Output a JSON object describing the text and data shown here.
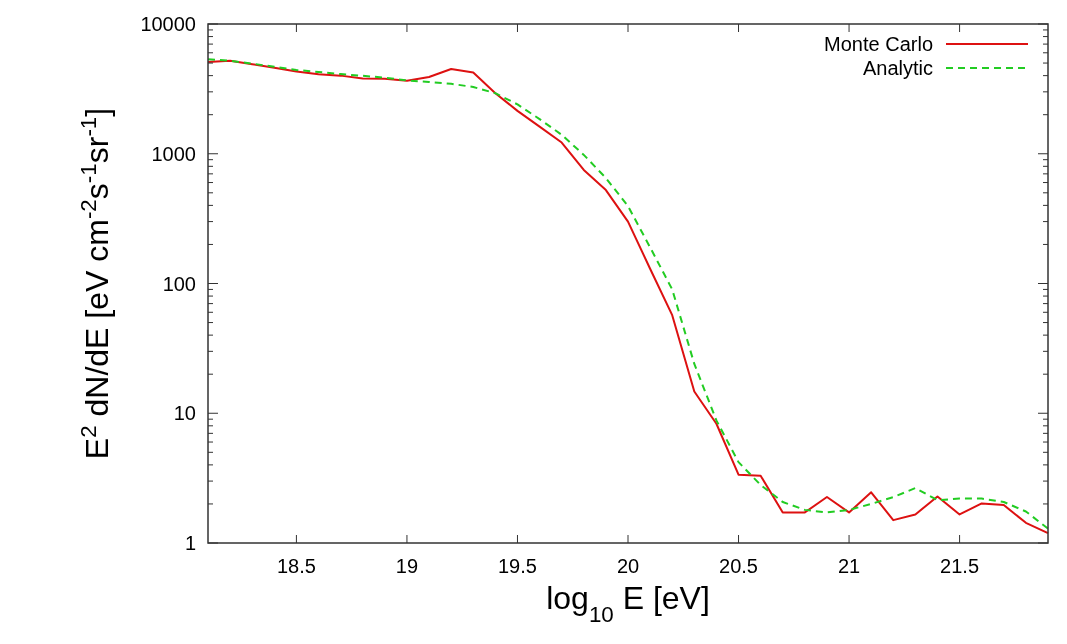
{
  "chart_data": {
    "type": "line",
    "xlabel": "log$_{10}$ E [eV]",
    "ylabel": "E$^{2}$ dN/dE [eV cm$^{-2}$s$^{-1}$sr$^{-1}$]",
    "x": [
      18.1,
      18.2,
      18.3,
      18.4,
      18.5,
      18.6,
      18.7,
      18.8,
      18.9,
      19.0,
      19.1,
      19.2,
      19.3,
      19.4,
      19.5,
      19.6,
      19.7,
      19.8,
      19.9,
      20.0,
      20.1,
      20.2,
      20.3,
      20.4,
      20.5,
      20.6,
      20.7,
      20.8,
      20.9,
      21.0,
      21.1,
      21.2,
      21.3,
      21.4,
      21.5,
      21.6,
      21.7,
      21.8,
      21.9
    ],
    "series": [
      {
        "name": "Monte Carlo",
        "color": "#dd1111",
        "line_style": "solid",
        "values": [
          5100,
          5200,
          4900,
          4600,
          4300,
          4100,
          4000,
          3800,
          3780,
          3650,
          3900,
          4500,
          4230,
          2930,
          2140,
          1620,
          1220,
          750,
          525,
          300,
          130,
          57,
          14.7,
          8.3,
          3.36,
          3.3,
          1.72,
          1.72,
          2.26,
          1.72,
          2.46,
          1.5,
          1.66,
          2.28,
          1.66,
          2.02,
          1.96,
          1.43,
          1.19
        ]
      },
      {
        "name": "Analytic",
        "color": "#22cc22",
        "line_style": "dashed",
        "values": [
          5350,
          5200,
          4950,
          4680,
          4420,
          4270,
          4110,
          3990,
          3860,
          3670,
          3570,
          3460,
          3270,
          2930,
          2400,
          1850,
          1400,
          980,
          650,
          395,
          190,
          90,
          24,
          8.8,
          4.2,
          2.8,
          2.07,
          1.8,
          1.72,
          1.8,
          2.0,
          2.26,
          2.65,
          2.14,
          2.2,
          2.2,
          2.07,
          1.75,
          1.29
        ]
      }
    ],
    "xlim": [
      18.1,
      21.9
    ],
    "xticks": [
      18.5,
      19,
      19.5,
      20,
      20.5,
      21,
      21.5
    ],
    "ylim": [
      1,
      10000
    ],
    "yticks": [
      1,
      10,
      100,
      1000,
      10000
    ],
    "log": "y",
    "grid": false,
    "legend": "top right"
  }
}
